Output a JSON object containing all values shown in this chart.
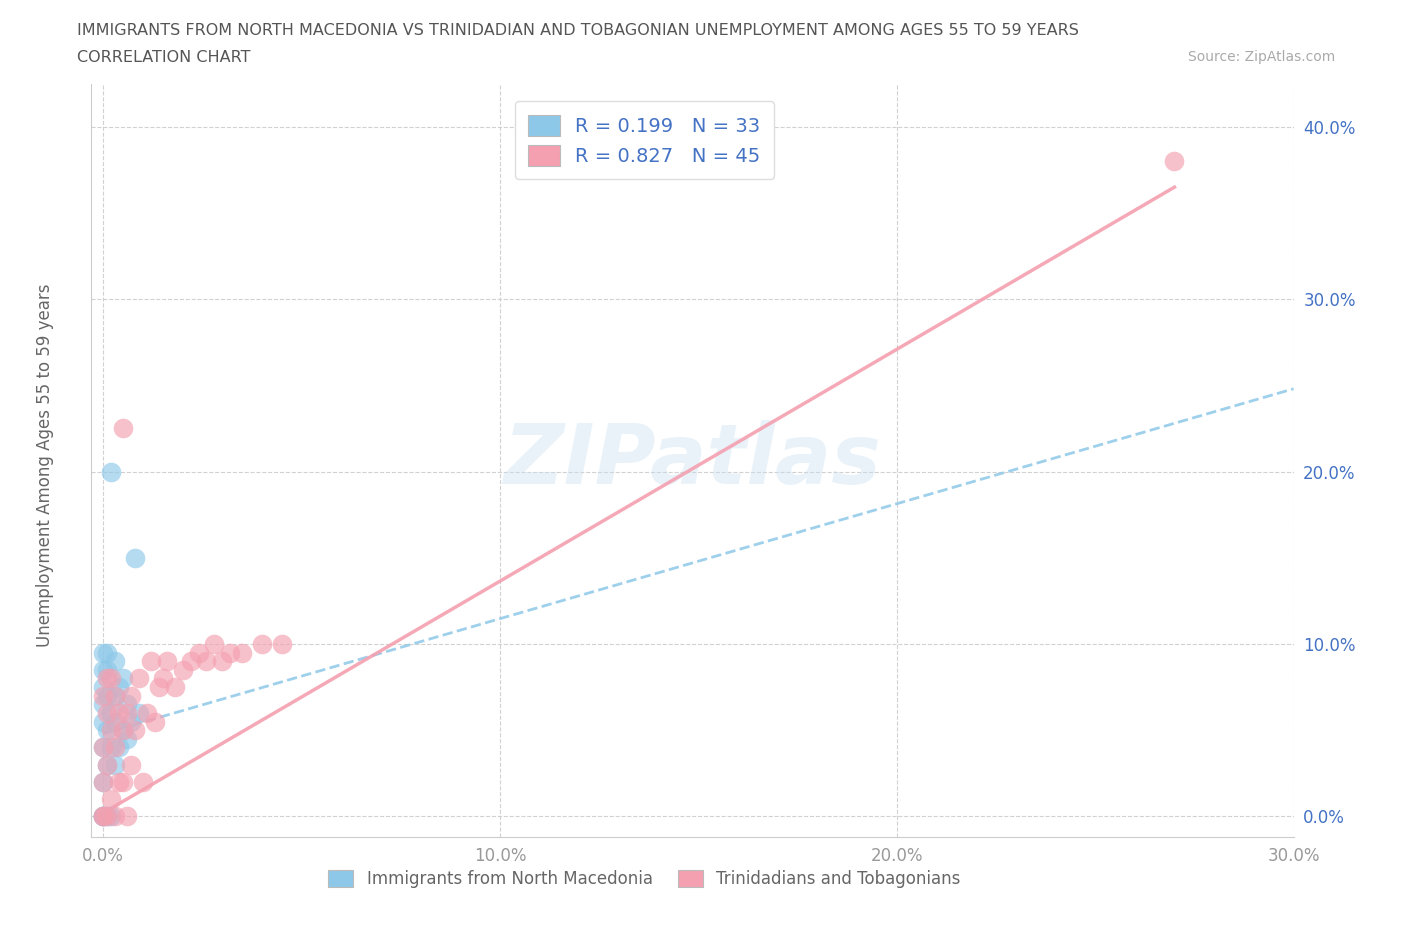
{
  "title_line1": "IMMIGRANTS FROM NORTH MACEDONIA VS TRINIDADIAN AND TOBAGONIAN UNEMPLOYMENT AMONG AGES 55 TO 59 YEARS",
  "title_line2": "CORRELATION CHART",
  "source": "Source: ZipAtlas.com",
  "ylabel_label": "Unemployment Among Ages 55 to 59 years",
  "watermark_text": "ZIPatlas",
  "legend_blue_label": "R = 0.199   N = 33",
  "legend_pink_label": "R = 0.827   N = 45",
  "legend_label_blue": "Immigrants from North Macedonia",
  "legend_label_pink": "Trinidadians and Tobagonians",
  "blue_color": "#8DC8E8",
  "pink_color": "#F4A0B0",
  "text_color_blue": "#4472C4",
  "tick_label_color_y": "#4472C4",
  "tick_label_color_x": "#999999",
  "grid_color": "#cccccc",
  "blue_scatter_x": [
    0.0,
    0.0,
    0.0,
    0.0,
    0.0,
    0.0,
    0.0,
    0.0,
    0.0,
    0.0,
    0.001,
    0.001,
    0.001,
    0.001,
    0.001,
    0.001,
    0.002,
    0.002,
    0.002,
    0.002,
    0.003,
    0.003,
    0.003,
    0.003,
    0.004,
    0.004,
    0.005,
    0.005,
    0.006,
    0.006,
    0.007,
    0.008,
    0.009
  ],
  "blue_scatter_y": [
    0.0,
    0.0,
    0.0,
    0.02,
    0.04,
    0.055,
    0.065,
    0.075,
    0.085,
    0.095,
    0.0,
    0.03,
    0.05,
    0.07,
    0.085,
    0.095,
    0.0,
    0.04,
    0.06,
    0.2,
    0.03,
    0.055,
    0.07,
    0.09,
    0.04,
    0.075,
    0.05,
    0.08,
    0.045,
    0.065,
    0.055,
    0.15,
    0.06
  ],
  "pink_scatter_x": [
    0.0,
    0.0,
    0.0,
    0.0,
    0.0,
    0.001,
    0.001,
    0.001,
    0.001,
    0.002,
    0.002,
    0.002,
    0.003,
    0.003,
    0.003,
    0.004,
    0.004,
    0.005,
    0.005,
    0.005,
    0.006,
    0.006,
    0.007,
    0.007,
    0.008,
    0.009,
    0.01,
    0.011,
    0.012,
    0.013,
    0.014,
    0.015,
    0.016,
    0.018,
    0.02,
    0.022,
    0.024,
    0.026,
    0.028,
    0.03,
    0.032,
    0.035,
    0.04,
    0.045,
    0.27
  ],
  "pink_scatter_y": [
    0.0,
    0.0,
    0.02,
    0.04,
    0.07,
    0.0,
    0.03,
    0.06,
    0.08,
    0.01,
    0.05,
    0.08,
    0.0,
    0.04,
    0.07,
    0.02,
    0.06,
    0.02,
    0.05,
    0.225,
    0.0,
    0.06,
    0.03,
    0.07,
    0.05,
    0.08,
    0.02,
    0.06,
    0.09,
    0.055,
    0.075,
    0.08,
    0.09,
    0.075,
    0.085,
    0.09,
    0.095,
    0.09,
    0.1,
    0.09,
    0.095,
    0.095,
    0.1,
    0.1,
    0.38
  ],
  "blue_trend_x": [
    0.0,
    0.3
  ],
  "blue_trend_y": [
    0.048,
    0.248
  ],
  "pink_trend_x": [
    0.0,
    0.27
  ],
  "pink_trend_y": [
    0.002,
    0.365
  ],
  "xlim": [
    -0.003,
    0.3
  ],
  "ylim": [
    -0.012,
    0.425
  ],
  "xticks": [
    0.0,
    0.1,
    0.2,
    0.3
  ],
  "yticks": [
    0.0,
    0.1,
    0.2,
    0.3,
    0.4
  ]
}
